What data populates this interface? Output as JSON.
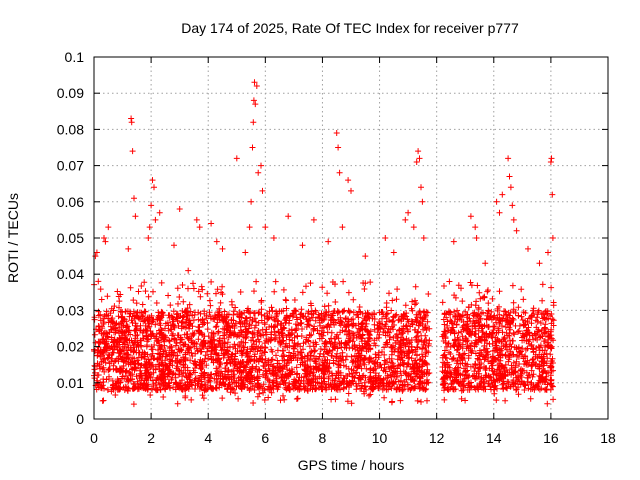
{
  "chart_data": {
    "type": "scatter",
    "title": "Day 174 of 2025, Rate Of TEC Index for receiver p777",
    "xlabel": "GPS time / hours",
    "ylabel": "ROTI / TECUs",
    "xlim": [
      0,
      18
    ],
    "ylim": [
      0,
      0.1
    ],
    "x_ticks": [
      "0",
      "2",
      "4",
      "6",
      "8",
      "10",
      "12",
      "14",
      "16",
      "18"
    ],
    "y_ticks": [
      "0",
      "0.01",
      "0.02",
      "0.03",
      "0.04",
      "0.05",
      "0.06",
      "0.07",
      "0.08",
      "0.09",
      "0.1"
    ],
    "grid": true,
    "marker": "+",
    "series": [
      {
        "name": "ROTI",
        "color": "#ff0000",
        "points": [
          [
            0.0,
            0.012
          ],
          [
            0.05,
            0.045
          ],
          [
            0.1,
            0.046
          ],
          [
            0.15,
            0.038
          ],
          [
            0.2,
            0.015
          ],
          [
            0.35,
            0.05
          ],
          [
            0.4,
            0.049
          ],
          [
            0.5,
            0.053
          ],
          [
            1.2,
            0.047
          ],
          [
            1.3,
            0.083
          ],
          [
            1.32,
            0.082
          ],
          [
            1.35,
            0.074
          ],
          [
            1.4,
            0.061
          ],
          [
            1.45,
            0.056
          ],
          [
            1.9,
            0.05
          ],
          [
            1.95,
            0.053
          ],
          [
            2.0,
            0.059
          ],
          [
            2.05,
            0.066
          ],
          [
            2.1,
            0.064
          ],
          [
            2.15,
            0.055
          ],
          [
            2.3,
            0.057
          ],
          [
            2.8,
            0.048
          ],
          [
            3.0,
            0.058
          ],
          [
            3.3,
            0.041
          ],
          [
            3.6,
            0.055
          ],
          [
            3.7,
            0.053
          ],
          [
            4.1,
            0.054
          ],
          [
            4.3,
            0.049
          ],
          [
            4.5,
            0.047
          ],
          [
            5.0,
            0.072
          ],
          [
            5.3,
            0.046
          ],
          [
            5.45,
            0.053
          ],
          [
            5.5,
            0.06
          ],
          [
            5.55,
            0.075
          ],
          [
            5.58,
            0.082
          ],
          [
            5.6,
            0.088
          ],
          [
            5.62,
            0.093
          ],
          [
            5.65,
            0.087
          ],
          [
            5.7,
            0.092
          ],
          [
            5.75,
            0.068
          ],
          [
            5.85,
            0.07
          ],
          [
            5.9,
            0.063
          ],
          [
            6.0,
            0.053
          ],
          [
            6.3,
            0.05
          ],
          [
            6.8,
            0.056
          ],
          [
            7.3,
            0.048
          ],
          [
            7.7,
            0.055
          ],
          [
            8.2,
            0.049
          ],
          [
            8.5,
            0.079
          ],
          [
            8.55,
            0.075
          ],
          [
            8.6,
            0.068
          ],
          [
            8.7,
            0.053
          ],
          [
            8.9,
            0.066
          ],
          [
            9.0,
            0.063
          ],
          [
            9.5,
            0.045
          ],
          [
            10.2,
            0.05
          ],
          [
            10.5,
            0.046
          ],
          [
            10.9,
            0.055
          ],
          [
            11.0,
            0.057
          ],
          [
            11.2,
            0.053
          ],
          [
            11.3,
            0.071
          ],
          [
            11.35,
            0.074
          ],
          [
            11.4,
            0.072
          ],
          [
            11.45,
            0.064
          ],
          [
            11.5,
            0.06
          ],
          [
            11.55,
            0.05
          ],
          [
            12.6,
            0.049
          ],
          [
            13.2,
            0.056
          ],
          [
            13.35,
            0.053
          ],
          [
            13.4,
            0.05
          ],
          [
            13.7,
            0.043
          ],
          [
            14.1,
            0.06
          ],
          [
            14.2,
            0.057
          ],
          [
            14.3,
            0.062
          ],
          [
            14.5,
            0.072
          ],
          [
            14.55,
            0.067
          ],
          [
            14.6,
            0.064
          ],
          [
            14.65,
            0.059
          ],
          [
            14.7,
            0.055
          ],
          [
            14.8,
            0.052
          ],
          [
            15.2,
            0.047
          ],
          [
            15.6,
            0.043
          ],
          [
            15.9,
            0.046
          ],
          [
            16.0,
            0.071
          ],
          [
            16.02,
            0.072
          ],
          [
            16.05,
            0.062
          ],
          [
            16.07,
            0.05
          ]
        ],
        "dense_band": {
          "segments": [
            [
              0.0,
              11.75
            ],
            [
              12.2,
              16.1
            ]
          ],
          "y_range": [
            0.004,
            0.038
          ],
          "typical_y": [
            0.008,
            0.03
          ],
          "approx_count": 4000
        }
      }
    ]
  }
}
